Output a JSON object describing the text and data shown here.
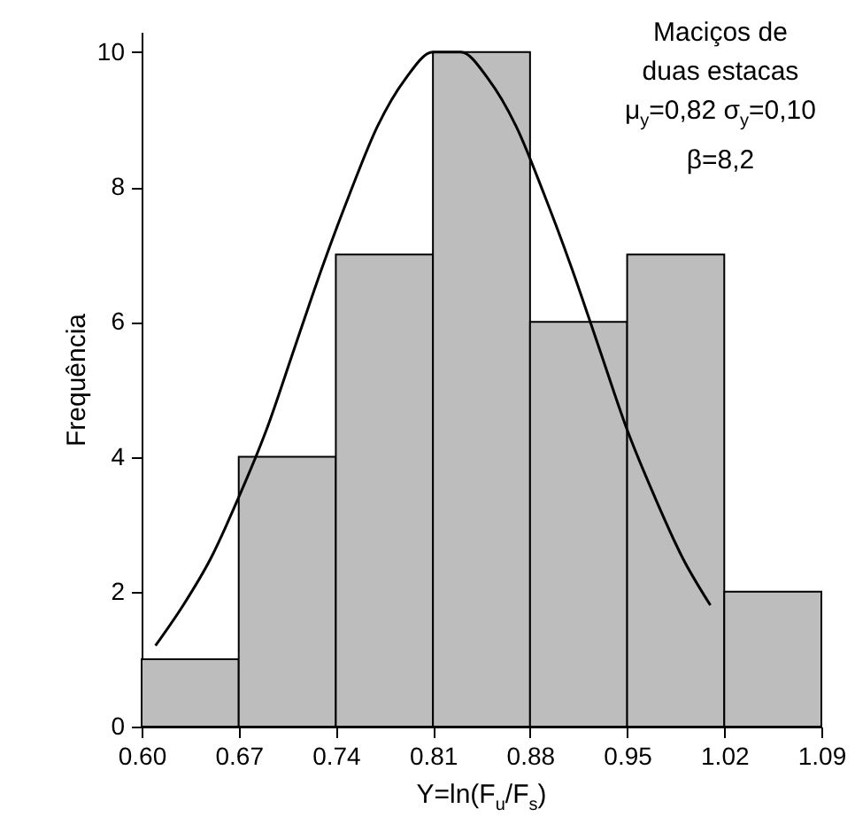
{
  "chart_data": {
    "type": "histogram",
    "xlabel": "Y=ln(F$_{u}$/F$_{s}$)",
    "ylabel": "Frequência",
    "bins": [
      0.6,
      0.67,
      0.74,
      0.81,
      0.88,
      0.95,
      1.02,
      1.09
    ],
    "values": [
      1,
      4,
      7,
      10,
      6,
      7,
      2
    ],
    "color": "#bdbdbd",
    "series": [
      {
        "type": "line",
        "color": "#000000",
        "x": [
          0.61,
          0.63,
          0.65,
          0.67,
          0.69,
          0.71,
          0.73,
          0.75,
          0.77,
          0.79,
          0.81,
          0.83,
          0.85,
          0.87,
          0.89,
          0.91,
          0.93,
          0.95,
          0.97,
          0.99,
          1.01
        ],
        "values": [
          1.2,
          1.8,
          2.5,
          3.4,
          4.4,
          5.6,
          6.8,
          7.9,
          8.9,
          9.6,
          10,
          10,
          9.6,
          8.9,
          7.9,
          6.8,
          5.6,
          4.4,
          3.4,
          2.5,
          1.8
        ]
      }
    ],
    "annotations": [
      "Maciços de\nduas estacas",
      "μ$_{y}$=0,82  σ$_{y}$=0,10",
      "β=8,2"
    ],
    "xlim": [
      0.6,
      1.09
    ],
    "ylim": [
      0,
      10.3
    ],
    "xticks": [
      {
        "value": 0.6,
        "label": "0.60"
      },
      {
        "value": 0.67,
        "label": "0.67"
      },
      {
        "value": 0.74,
        "label": "0.74"
      },
      {
        "value": 0.81,
        "label": "0.81"
      },
      {
        "value": 0.88,
        "label": "0.88"
      },
      {
        "value": 0.95,
        "label": "0.95"
      },
      {
        "value": 1.02,
        "label": "1.02"
      },
      {
        "value": 1.09,
        "label": "1.09"
      }
    ],
    "yticks": [
      0,
      2,
      4,
      6,
      8,
      10
    ],
    "grid": false
  }
}
